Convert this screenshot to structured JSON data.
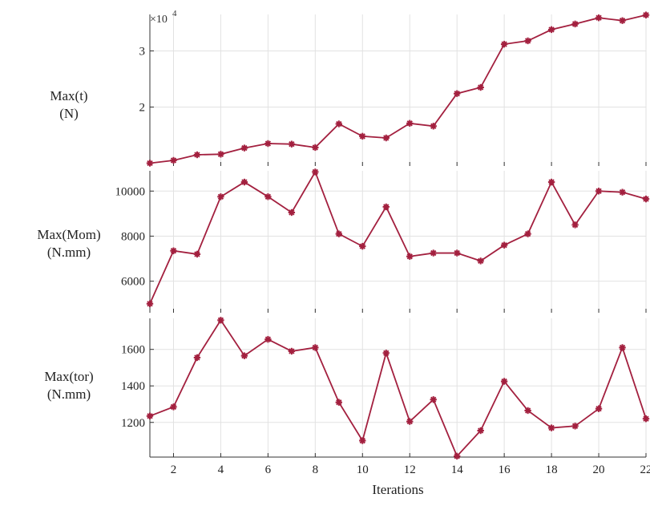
{
  "chart_data": [
    {
      "type": "line",
      "ylabel": [
        "Max(t)",
        "(N)"
      ],
      "y_multiplier": "×10",
      "y_multiplier_exp": "4",
      "xlim": [
        1,
        22
      ],
      "ylim": [
        0.95,
        3.65
      ],
      "yticks": [
        2,
        3
      ],
      "grid": true,
      "x": [
        1,
        2,
        3,
        4,
        5,
        6,
        7,
        8,
        9,
        10,
        11,
        12,
        13,
        14,
        15,
        16,
        17,
        18,
        19,
        20,
        21,
        22
      ],
      "series": [
        {
          "color": "#a3203f",
          "values": [
            1.0,
            1.05,
            1.15,
            1.16,
            1.27,
            1.35,
            1.34,
            1.28,
            1.7,
            1.48,
            1.45,
            1.71,
            1.66,
            2.24,
            2.35,
            3.12,
            3.18,
            3.38,
            3.48,
            3.59,
            3.54,
            3.64
          ]
        }
      ]
    },
    {
      "type": "line",
      "ylabel": [
        "Max(Mom)",
        "(N.mm)"
      ],
      "xlim": [
        1,
        22
      ],
      "ylim": [
        4600,
        10900
      ],
      "yticks": [
        6000,
        8000,
        10000
      ],
      "grid": true,
      "x": [
        1,
        2,
        3,
        4,
        5,
        6,
        7,
        8,
        9,
        10,
        11,
        12,
        13,
        14,
        15,
        16,
        17,
        18,
        19,
        20,
        21,
        22
      ],
      "series": [
        {
          "color": "#a3203f",
          "values": [
            5000,
            7350,
            7200,
            9750,
            10400,
            9750,
            9050,
            10850,
            8100,
            7550,
            9300,
            7100,
            7250,
            7250,
            6900,
            7600,
            8100,
            10400,
            8500,
            10000,
            9950,
            9650
          ]
        }
      ]
    },
    {
      "type": "line",
      "ylabel": [
        "Max(tor)",
        "(N.mm)"
      ],
      "xlim": [
        1,
        22
      ],
      "ylim": [
        1010,
        1770
      ],
      "yticks": [
        1200,
        1400,
        1600
      ],
      "grid": true,
      "xlabel": "Iterations",
      "xticks": [
        2,
        4,
        6,
        8,
        10,
        12,
        14,
        16,
        18,
        20,
        22
      ],
      "x": [
        1,
        2,
        3,
        4,
        5,
        6,
        7,
        8,
        9,
        10,
        11,
        12,
        13,
        14,
        15,
        16,
        17,
        18,
        19,
        20,
        21,
        22
      ],
      "series": [
        {
          "color": "#a3203f",
          "values": [
            1235,
            1285,
            1555,
            1760,
            1565,
            1655,
            1590,
            1610,
            1310,
            1100,
            1580,
            1205,
            1325,
            1015,
            1155,
            1425,
            1265,
            1170,
            1180,
            1275,
            1610,
            1220
          ]
        }
      ]
    }
  ]
}
